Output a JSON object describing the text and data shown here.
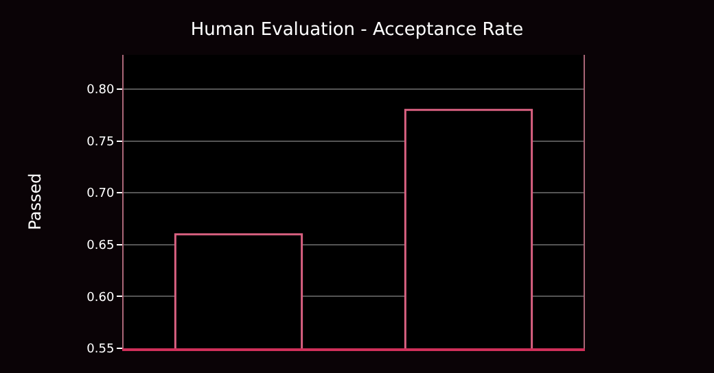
{
  "chart_data": {
    "type": "bar",
    "title": "Human Evaluation - Acceptance Rate",
    "ylabel": "Passed",
    "categories": [
      null,
      null
    ],
    "values": [
      0.66,
      0.78
    ],
    "colors": [
      "#000000",
      "#000000"
    ],
    "ylim": [
      0.55,
      0.833
    ],
    "yticks": [
      0.55,
      {
        "value": 0.6,
        "label": "0.60"
      },
      0.65,
      {
        "value": 0.7,
        "label": "0.70"
      },
      0.75,
      {
        "value": 0.8,
        "label": "0.80"
      }
    ],
    "grid": "y",
    "legend": false
  }
}
